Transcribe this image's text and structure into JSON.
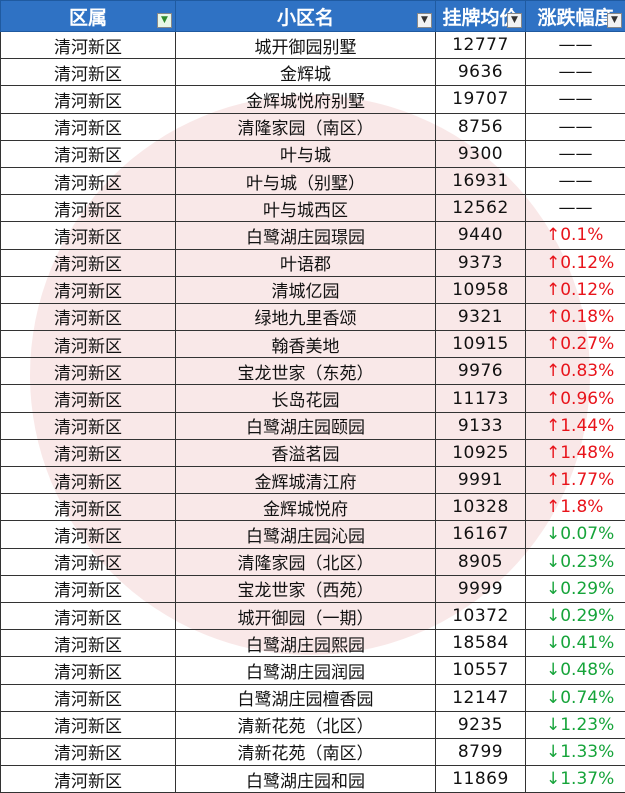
{
  "headers": [
    {
      "label": "区属",
      "filter_icon": "filter-applied-icon"
    },
    {
      "label": "小区名",
      "filter_icon": "dropdown-arrow-icon"
    },
    {
      "label": "挂牌均价",
      "filter_icon": "dropdown-arrow-icon"
    },
    {
      "label": "涨跌幅度",
      "filter_icon": "dropdown-arrow-icon"
    }
  ],
  "colors": {
    "header_bg": "#2f72c4",
    "up": "#e8141b",
    "down": "#16a43a",
    "watermark": "#d65a5a"
  },
  "rows": [
    {
      "district": "清河新区",
      "name": "城开御园别墅",
      "price": "12777",
      "change": "——",
      "dir": "flat"
    },
    {
      "district": "清河新区",
      "name": "金辉城",
      "price": "9636",
      "change": "——",
      "dir": "flat"
    },
    {
      "district": "清河新区",
      "name": "金辉城悦府别墅",
      "price": "19707",
      "change": "——",
      "dir": "flat"
    },
    {
      "district": "清河新区",
      "name": "清隆家园（南区）",
      "price": "8756",
      "change": "——",
      "dir": "flat"
    },
    {
      "district": "清河新区",
      "name": "叶与城",
      "price": "9300",
      "change": "——",
      "dir": "flat"
    },
    {
      "district": "清河新区",
      "name": "叶与城（别墅）",
      "price": "16931",
      "change": "——",
      "dir": "flat"
    },
    {
      "district": "清河新区",
      "name": "叶与城西区",
      "price": "12562",
      "change": "——",
      "dir": "flat"
    },
    {
      "district": "清河新区",
      "name": "白鹭湖庄园璟园",
      "price": "9440",
      "change": "↑0.1%",
      "dir": "up"
    },
    {
      "district": "清河新区",
      "name": "叶语郡",
      "price": "9373",
      "change": "↑0.12%",
      "dir": "up"
    },
    {
      "district": "清河新区",
      "name": "清城亿园",
      "price": "10958",
      "change": "↑0.12%",
      "dir": "up"
    },
    {
      "district": "清河新区",
      "name": "绿地九里香颂",
      "price": "9321",
      "change": "↑0.18%",
      "dir": "up"
    },
    {
      "district": "清河新区",
      "name": "翰香美地",
      "price": "10915",
      "change": "↑0.27%",
      "dir": "up"
    },
    {
      "district": "清河新区",
      "name": "宝龙世家（东苑）",
      "price": "9976",
      "change": "↑0.83%",
      "dir": "up"
    },
    {
      "district": "清河新区",
      "name": "长岛花园",
      "price": "11173",
      "change": "↑0.96%",
      "dir": "up"
    },
    {
      "district": "清河新区",
      "name": "白鹭湖庄园颐园",
      "price": "9133",
      "change": "↑1.44%",
      "dir": "up"
    },
    {
      "district": "清河新区",
      "name": "香溢茗园",
      "price": "10925",
      "change": "↑1.48%",
      "dir": "up"
    },
    {
      "district": "清河新区",
      "name": "金辉城清江府",
      "price": "9991",
      "change": "↑1.77%",
      "dir": "up"
    },
    {
      "district": "清河新区",
      "name": "金辉城悦府",
      "price": "10328",
      "change": "↑1.8%",
      "dir": "up"
    },
    {
      "district": "清河新区",
      "name": "白鹭湖庄园沁园",
      "price": "16167",
      "change": "↓0.07%",
      "dir": "down"
    },
    {
      "district": "清河新区",
      "name": "清隆家园（北区）",
      "price": "8905",
      "change": "↓0.23%",
      "dir": "down"
    },
    {
      "district": "清河新区",
      "name": "宝龙世家（西苑）",
      "price": "9999",
      "change": "↓0.29%",
      "dir": "down"
    },
    {
      "district": "清河新区",
      "name": "城开御园（一期）",
      "price": "10372",
      "change": "↓0.29%",
      "dir": "down"
    },
    {
      "district": "清河新区",
      "name": "白鹭湖庄园熙园",
      "price": "18584",
      "change": "↓0.41%",
      "dir": "down"
    },
    {
      "district": "清河新区",
      "name": "白鹭湖庄园润园",
      "price": "10557",
      "change": "↓0.48%",
      "dir": "down"
    },
    {
      "district": "清河新区",
      "name": "白鹭湖庄园檀香园",
      "price": "12147",
      "change": "↓0.74%",
      "dir": "down"
    },
    {
      "district": "清河新区",
      "name": "清新花苑（北区）",
      "price": "9235",
      "change": "↓1.23%",
      "dir": "down"
    },
    {
      "district": "清河新区",
      "name": "清新花苑（南区）",
      "price": "8799",
      "change": "↓1.33%",
      "dir": "down"
    },
    {
      "district": "清河新区",
      "name": "白鹭湖庄园和园",
      "price": "11869",
      "change": "↓1.37%",
      "dir": "down"
    }
  ]
}
